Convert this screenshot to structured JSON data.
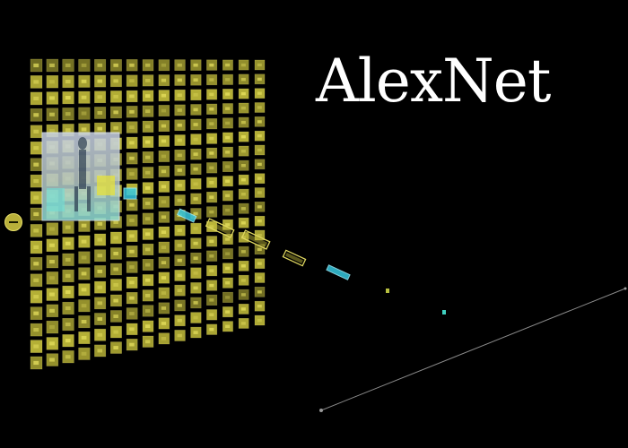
{
  "title": "AlexNet",
  "controls": {
    "collapse_icon": "minus-icon"
  },
  "colors": {
    "background": "#000000",
    "feature_map": "#c8c23c",
    "feature_map_stroke": "#e8e070",
    "conv_block": "#e0d860",
    "cyan_block": "#35c8e0",
    "fc_dot_yellow": "#b8c040",
    "fc_dot_cyan": "#40d0c0",
    "output_line": "#8a8a8a"
  }
}
